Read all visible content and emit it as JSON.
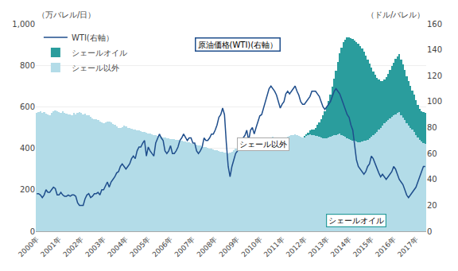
{
  "chart_data": {
    "type": "bar",
    "stacked": true,
    "ylabel": "（万バレル/日）",
    "y2label": "（ドル/バレル）",
    "categories": [
      "2000年",
      null,
      null,
      null,
      null,
      null,
      null,
      null,
      null,
      null,
      null,
      null,
      "2001年",
      null,
      null,
      null,
      null,
      null,
      null,
      null,
      null,
      null,
      null,
      null,
      "2002年",
      null,
      null,
      null,
      null,
      null,
      null,
      null,
      null,
      null,
      null,
      null,
      "2003年",
      null,
      null,
      null,
      null,
      null,
      null,
      null,
      null,
      null,
      null,
      null,
      "2004年",
      null,
      null,
      null,
      null,
      null,
      null,
      null,
      null,
      null,
      null,
      null,
      "2005年",
      null,
      null,
      null,
      null,
      null,
      null,
      null,
      null,
      null,
      null,
      null,
      "2006年",
      null,
      null,
      null,
      null,
      null,
      null,
      null,
      null,
      null,
      null,
      null,
      "2007年",
      null,
      null,
      null,
      null,
      null,
      null,
      null,
      null,
      null,
      null,
      null,
      "2008年",
      null,
      null,
      null,
      null,
      null,
      null,
      null,
      null,
      null,
      null,
      null,
      "2009年",
      null,
      null,
      null,
      null,
      null,
      null,
      null,
      null,
      null,
      null,
      null,
      "2010年",
      null,
      null,
      null,
      null,
      null,
      null,
      null,
      null,
      null,
      null,
      null,
      "2011年",
      null,
      null,
      null,
      null,
      null,
      null,
      null,
      null,
      null,
      null,
      null,
      "2012年",
      null,
      null,
      null,
      null,
      null,
      null,
      null,
      null,
      null,
      null,
      null,
      "2013年",
      null,
      null,
      null,
      null,
      null,
      null,
      null,
      null,
      null,
      null,
      null,
      "2014年",
      null,
      null,
      null,
      null,
      null,
      null,
      null,
      null,
      null,
      null,
      null,
      "2015年",
      null,
      null,
      null,
      null,
      null,
      null,
      null,
      null,
      null,
      null,
      null,
      "2016年",
      null,
      null,
      null,
      null,
      null,
      null,
      null,
      null,
      null,
      null,
      null,
      "2017年",
      null,
      null,
      null,
      null,
      null
    ],
    "series": [
      {
        "name": "シェール以外",
        "type": "bar",
        "color": "#b3dce8",
        "values": [
          570,
          575,
          578,
          572,
          576,
          568,
          565,
          560,
          572,
          578,
          582,
          580,
          575,
          572,
          578,
          570,
          568,
          565,
          562,
          558,
          570,
          565,
          570,
          575,
          570,
          565,
          568,
          560,
          558,
          552,
          545,
          542,
          540,
          535,
          530,
          525,
          520,
          525,
          530,
          528,
          524,
          518,
          512,
          505,
          500,
          498,
          502,
          508,
          505,
          500,
          498,
          495,
          492,
          490,
          488,
          485,
          482,
          480,
          478,
          475,
          472,
          470,
          468,
          465,
          463,
          460,
          458,
          456,
          454,
          452,
          450,
          448,
          446,
          445,
          443,
          442,
          440,
          438,
          436,
          434,
          432,
          430,
          428,
          425,
          422,
          420,
          418,
          415,
          412,
          410,
          408,
          405,
          402,
          400,
          398,
          395,
          392,
          390,
          388,
          385,
          382,
          380,
          378,
          375,
          380,
          385,
          390,
          400,
          405,
          410,
          415,
          420,
          425,
          425,
          430,
          435,
          430,
          425,
          420,
          415,
          420,
          425,
          430,
          435,
          440,
          445,
          450,
          455,
          450,
          445,
          440,
          438,
          440,
          445,
          450,
          455,
          460,
          465,
          465,
          468,
          465,
          460,
          455,
          452,
          455,
          460,
          465,
          468,
          465,
          462,
          460,
          458,
          455,
          452,
          450,
          448,
          450,
          452,
          455,
          458,
          462,
          465,
          468,
          470,
          465,
          460,
          455,
          450,
          445,
          440,
          438,
          435,
          432,
          430,
          428,
          432,
          435,
          438,
          442,
          448,
          455,
          462,
          470,
          480,
          490,
          500,
          510,
          520,
          530,
          538,
          545,
          552,
          558,
          565,
          570,
          575,
          560,
          548,
          535,
          520,
          510,
          500,
          490,
          480,
          465,
          452,
          440,
          432,
          425,
          420
        ]
      },
      {
        "name": "シェールオイル",
        "type": "bar",
        "color": "#2a9d9d",
        "values": [
          0,
          0,
          0,
          0,
          0,
          0,
          0,
          0,
          0,
          0,
          0,
          0,
          0,
          0,
          0,
          0,
          0,
          0,
          0,
          0,
          0,
          0,
          0,
          0,
          0,
          0,
          0,
          0,
          0,
          0,
          0,
          0,
          0,
          0,
          0,
          0,
          0,
          0,
          0,
          0,
          0,
          0,
          0,
          0,
          0,
          0,
          0,
          0,
          0,
          0,
          0,
          0,
          0,
          0,
          0,
          0,
          0,
          0,
          0,
          0,
          0,
          0,
          0,
          0,
          0,
          0,
          0,
          0,
          0,
          0,
          0,
          0,
          0,
          0,
          0,
          0,
          0,
          0,
          0,
          0,
          0,
          0,
          0,
          0,
          0,
          0,
          0,
          0,
          0,
          0,
          0,
          0,
          0,
          0,
          0,
          0,
          0,
          0,
          0,
          0,
          0,
          0,
          0,
          0,
          0,
          0,
          0,
          0,
          0,
          0,
          0,
          0,
          0,
          0,
          0,
          0,
          0,
          0,
          0,
          0,
          0,
          0,
          0,
          0,
          0,
          0,
          0,
          0,
          0,
          0,
          0,
          0,
          0,
          0,
          0,
          0,
          0,
          0,
          0,
          0,
          0,
          0,
          0,
          0,
          5,
          8,
          12,
          18,
          25,
          30,
          40,
          55,
          70,
          90,
          110,
          130,
          150,
          175,
          205,
          240,
          275,
          310,
          350,
          390,
          420,
          450,
          470,
          485,
          490,
          492,
          490,
          485,
          480,
          475,
          465,
          450,
          430,
          410,
          385,
          360,
          335,
          310,
          285,
          260,
          240,
          225,
          215,
          210,
          215,
          222,
          232,
          244,
          255,
          265,
          272,
          278,
          268,
          255,
          242,
          228,
          215,
          202,
          190,
          178,
          168,
          158,
          150,
          145,
          148,
          152
        ]
      },
      {
        "name": "WTI(右軸）",
        "type": "line",
        "axis": "y2",
        "color": "#1f4e8c",
        "values": [
          29,
          29,
          28,
          26,
          28,
          32,
          30,
          30,
          32,
          34,
          33,
          28,
          28,
          30,
          28,
          27,
          27,
          28,
          27,
          28,
          28,
          27,
          22,
          20,
          20,
          20,
          25,
          28,
          29,
          26,
          27,
          29,
          29,
          30,
          28,
          32,
          32,
          35,
          38,
          34,
          38,
          40,
          42,
          45,
          46,
          50,
          52,
          50,
          48,
          50,
          52,
          56,
          58,
          56,
          62,
          65,
          65,
          68,
          70,
          58,
          65,
          62,
          60,
          58,
          68,
          72,
          75,
          72,
          70,
          62,
          60,
          62,
          66,
          60,
          60,
          62,
          65,
          70,
          72,
          75,
          72,
          70,
          72,
          72,
          68,
          68,
          62,
          60,
          62,
          65,
          72,
          70,
          70,
          72,
          75,
          75,
          78,
          82,
          88,
          90,
          95,
          90,
          68,
          50,
          42,
          50,
          55,
          60,
          62,
          70,
          68,
          72,
          74,
          78,
          70,
          78,
          80,
          75,
          80,
          85,
          89,
          90,
          95,
          100,
          105,
          110,
          112,
          110,
          108,
          105,
          100,
          95,
          98,
          100,
          106,
          108,
          106,
          108,
          110,
          112,
          108,
          105,
          100,
          98,
          98,
          100,
          102,
          104,
          108,
          108,
          108,
          106,
          104,
          100,
          96,
          94,
          96,
          98,
          100,
          104,
          108,
          110,
          108,
          106,
          102,
          98,
          94,
          90,
          88,
          82,
          78,
          68,
          55,
          50,
          48,
          46,
          44,
          46,
          50,
          52,
          58,
          56,
          52,
          48,
          45,
          42,
          44,
          42,
          40,
          42,
          44,
          46,
          50,
          48,
          44,
          40,
          38,
          36,
          32,
          28,
          26,
          28,
          30,
          32,
          34,
          38,
          42,
          46,
          50,
          50
        ]
      }
    ],
    "ylim": [
      0,
      1000
    ],
    "yticks": [
      0,
      200,
      400,
      600,
      800,
      {
        "value": 1000,
        "label": "1,000"
      }
    ],
    "y2lim": [
      0,
      160
    ],
    "y2ticks": [
      0,
      20,
      40,
      60,
      80,
      100,
      120,
      140,
      160
    ],
    "grid": true,
    "legend": "upper left",
    "annotations": [
      "原油価格(WTI)(右軸）",
      "シェール以外",
      "シェールオイル"
    ]
  }
}
